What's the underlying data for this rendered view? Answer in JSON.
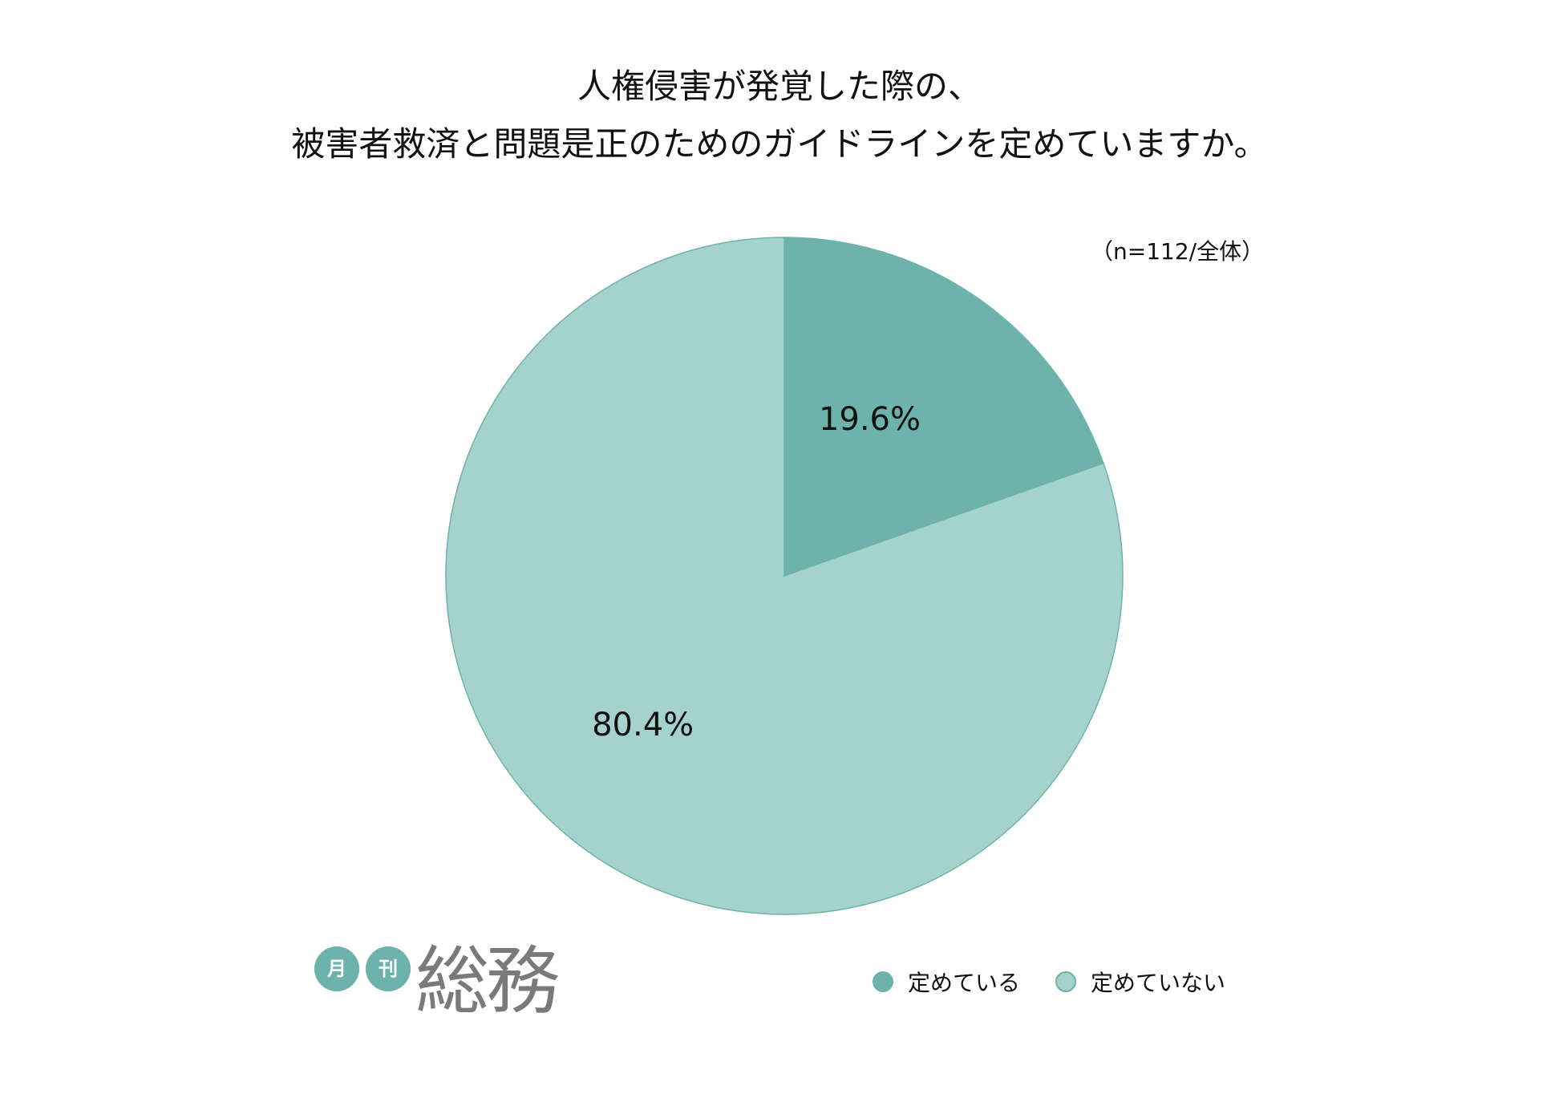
{
  "title_line1": "人権侵害が発覚した際の、",
  "title_line2": "被害者救済と問題是正のためのガイドラインを定めていますか。",
  "sample_note": "（n=112/全体）",
  "logo": {
    "badge_1": "月",
    "badge_2": "刊",
    "main": "総務"
  },
  "colors": {
    "accent_dark": "#6db3ab",
    "accent_light": "#a5d2cc",
    "slice_stroke": "#6db3ab"
  },
  "chart_data": {
    "type": "pie",
    "title": "人権侵害が発覚した際の、被害者救済と問題是正のためのガイドラインを定めていますか。",
    "note": "（n=112/全体）",
    "start": "12 o'clock, clockwise",
    "legend_placement": "bottom-right",
    "series": [
      {
        "name": "定めている",
        "value": 19.6,
        "label": "19.6%",
        "color": "#6db3ab"
      },
      {
        "name": "定めていない",
        "value": 80.4,
        "label": "80.4%",
        "color": "#a5d2cc"
      }
    ]
  }
}
